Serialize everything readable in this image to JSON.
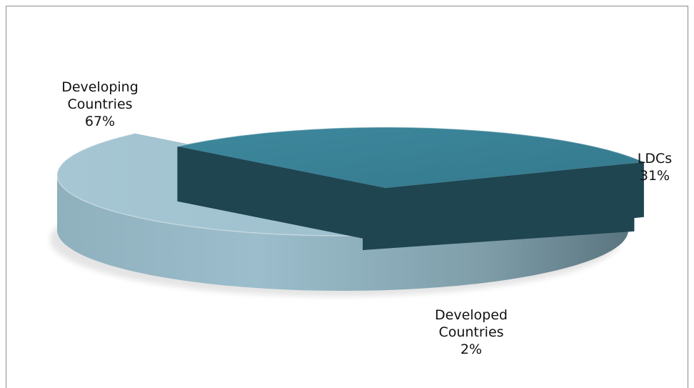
{
  "chart_data": {
    "type": "pie",
    "style": "3d-exploded",
    "title": "",
    "slices": [
      {
        "name": "Developing Countries",
        "label_lines": [
          "Developing",
          "Countries"
        ],
        "value": 67,
        "value_label": "67%",
        "color": "#9bbdcb"
      },
      {
        "name": "LDCs",
        "label_lines": [
          "LDCs"
        ],
        "value": 31,
        "value_label": "31%",
        "color": "#3b8398"
      },
      {
        "name": "Developed Countries",
        "label_lines": [
          "Developed",
          "Countries"
        ],
        "value": 2,
        "value_label": "2%",
        "color": "#4ca0bb"
      }
    ]
  }
}
